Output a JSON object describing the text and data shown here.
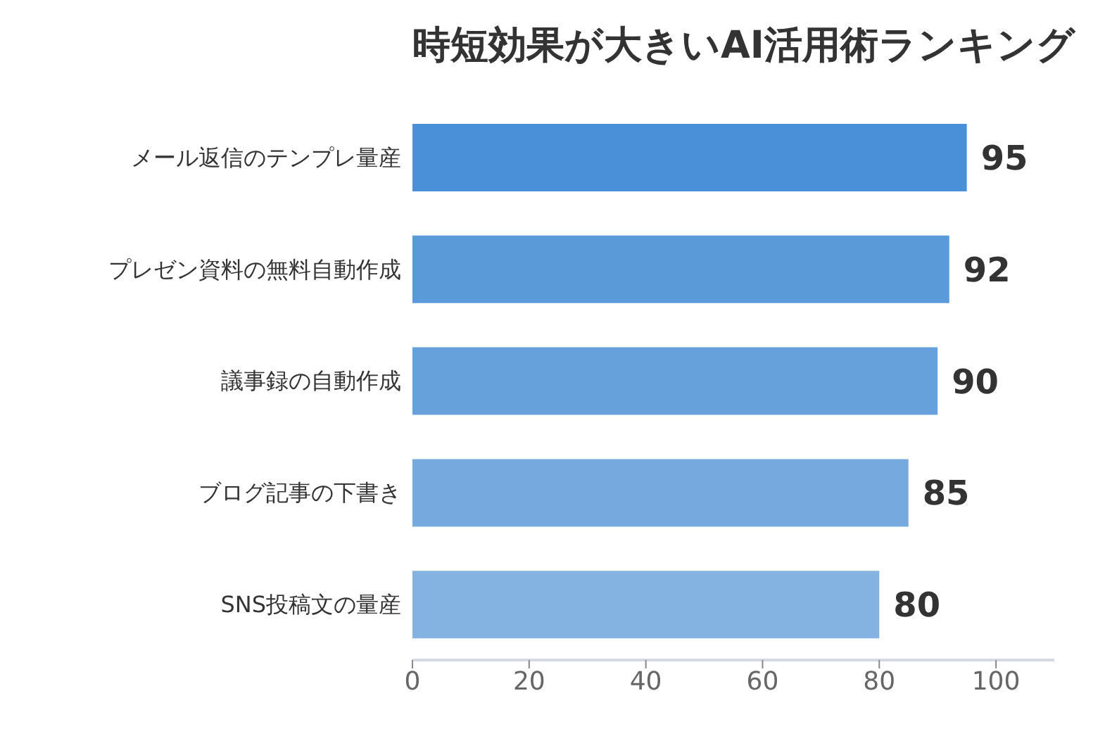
{
  "chart_data": {
    "type": "bar",
    "orientation": "horizontal",
    "title": "時短効果が大きいAI活用術ランキング",
    "categories": [
      "メール返信のテンプレ量産",
      "プレゼン資料の無料自動作成",
      "議事録の自動作成",
      "ブログ記事の下書き",
      "SNS投稿文の量産"
    ],
    "values": [
      95,
      92,
      90,
      85,
      80
    ],
    "colors": [
      "#4a90d9",
      "#5a9ad9",
      "#67a1dc",
      "#76aadf",
      "#84b2e1"
    ],
    "xlim": [
      0,
      110
    ],
    "xticks": [
      0,
      20,
      40,
      60,
      80,
      100
    ],
    "data_labels": true
  }
}
